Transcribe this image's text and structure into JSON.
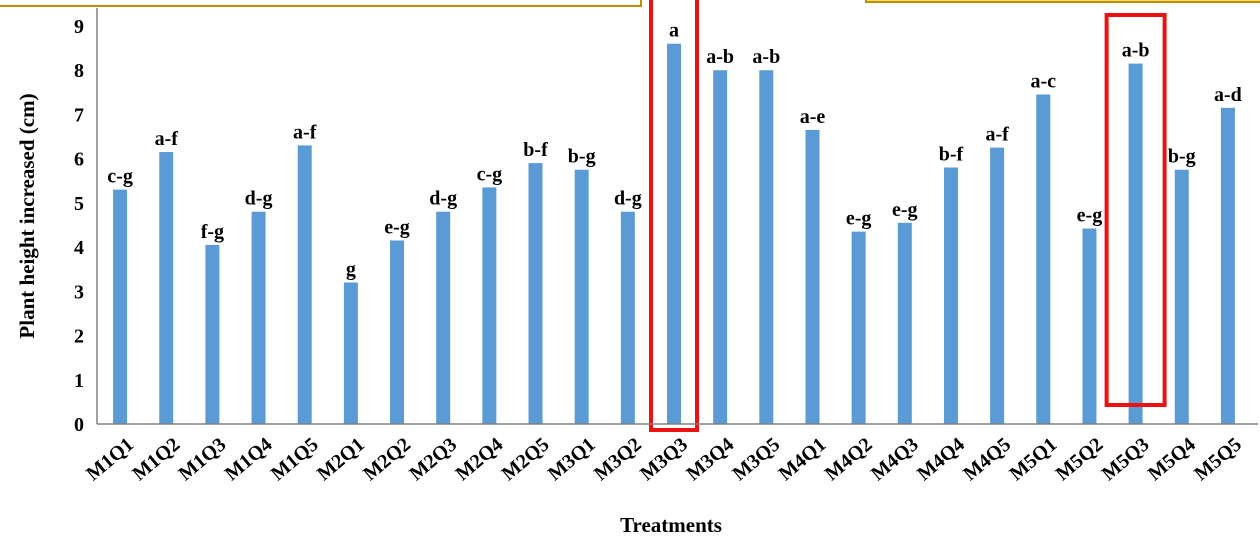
{
  "chart_data": {
    "type": "bar",
    "xlabel": "Treatments",
    "ylabel": "Plant height increased (cm)",
    "ylim": [
      0,
      9
    ],
    "yticks": [
      0,
      1,
      2,
      3,
      4,
      5,
      6,
      7,
      8,
      9
    ],
    "grid": false,
    "categories": [
      "M1Q1",
      "M1Q2",
      "M1Q3",
      "M1Q4",
      "M1Q5",
      "M2Q1",
      "M2Q2",
      "M2Q3",
      "M2Q4",
      "M2Q5",
      "M3Q1",
      "M3Q2",
      "M3Q3",
      "M3Q4",
      "M3Q5",
      "M4Q1",
      "M4Q2",
      "M4Q3",
      "M4Q4",
      "M4Q5",
      "M5Q1",
      "M5Q2",
      "M5Q3",
      "M5Q4",
      "M5Q5"
    ],
    "values": [
      5.3,
      6.15,
      4.05,
      4.8,
      6.3,
      3.2,
      4.15,
      4.8,
      5.35,
      5.9,
      5.75,
      4.8,
      8.6,
      8.0,
      8.0,
      6.65,
      4.35,
      4.55,
      5.8,
      6.25,
      7.45,
      4.42,
      8.15,
      5.75,
      7.15
    ],
    "data_labels": [
      "c-g",
      "a-f",
      "f-g",
      "d-g",
      "a-f",
      "g",
      "e-g",
      "d-g",
      "c-g",
      "b-f",
      "b-g",
      "d-g",
      "a",
      "a-b",
      "a-b",
      "a-e",
      "e-g",
      "e-g",
      "b-f",
      "a-f",
      "a-c",
      "e-g",
      "a-b",
      "b-g",
      "a-d"
    ],
    "highlighted": [
      "M3Q3",
      "M5Q3"
    ],
    "colors": {
      "bar": "#5B9BD5",
      "highlight": "#EE1111",
      "callout": "#FFD966"
    }
  }
}
